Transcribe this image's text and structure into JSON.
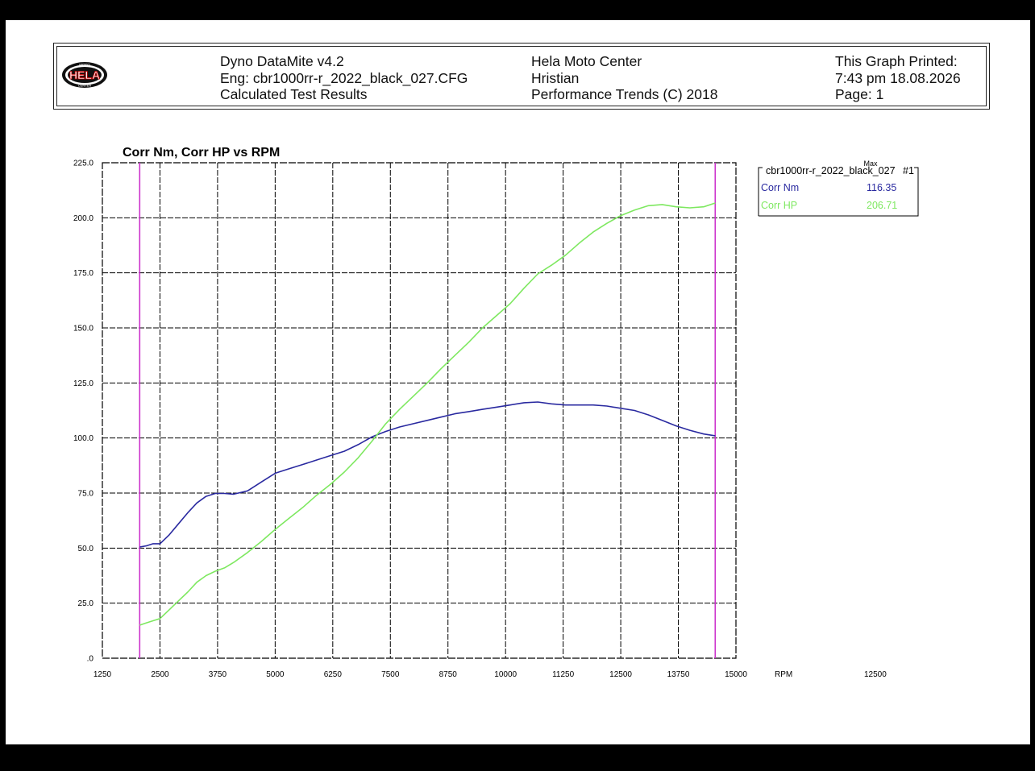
{
  "header": {
    "col1": [
      "Dyno DataMite v4.2",
      "Eng: cbr1000rr-r_2022_black_027.CFG",
      "Calculated Test Results"
    ],
    "col2": [
      "Hela Moto Center",
      "Hristian",
      "Performance Trends (C) 2018"
    ],
    "col3": [
      "This Graph Printed:",
      "7:43 pm 18.08.2026",
      "Page: 1"
    ],
    "logo_top": "MOTO",
    "logo_text": "HELA",
    "logo_bottom": "CENTER"
  },
  "legend": {
    "max_label": "Max",
    "file": "cbr1000rr-r_2022_black_027",
    "run": "#1",
    "items": [
      {
        "name": "Corr Nm",
        "value": "116.35",
        "color": "#2a2aa0"
      },
      {
        "name": "Corr HP",
        "value": "206.71",
        "color": "#7ee860"
      }
    ]
  },
  "chart_data": {
    "type": "line",
    "title": "Corr Nm, Corr HP vs RPM",
    "xlabel": "RPM",
    "extra_x_label": "12500",
    "xlim": [
      1250,
      15000
    ],
    "ylim": [
      0,
      225
    ],
    "x_ticks": [
      "1250",
      "2500",
      "3750",
      "5000",
      "6250",
      "7500",
      "8750",
      "10000",
      "11250",
      "12500",
      "13750",
      "15000"
    ],
    "y_ticks": [
      ".0",
      "25.0",
      "50.0",
      "75.0",
      "100.0",
      "125.0",
      "150.0",
      "175.0",
      "200.0",
      "225.0"
    ],
    "grid": true,
    "markers_x": [
      2060,
      14550
    ],
    "series": [
      {
        "name": "Corr Nm",
        "color": "#2a2aa0",
        "x": [
          2060,
          2200,
          2350,
          2500,
          2700,
          2900,
          3100,
          3300,
          3500,
          3700,
          3900,
          4100,
          4400,
          4700,
          5000,
          5300,
          5600,
          5900,
          6200,
          6500,
          6800,
          7100,
          7400,
          7700,
          8000,
          8300,
          8600,
          8900,
          9200,
          9500,
          9800,
          10100,
          10400,
          10700,
          11000,
          11300,
          11600,
          11900,
          12200,
          12500,
          12800,
          13100,
          13400,
          13700,
          14000,
          14300,
          14550
        ],
        "y": [
          50.5,
          51.0,
          52.0,
          52.0,
          56.0,
          61.0,
          66.0,
          70.5,
          73.5,
          74.8,
          74.8,
          74.5,
          76.0,
          80.0,
          84.0,
          86.0,
          88.0,
          90.0,
          92.0,
          94.0,
          97.0,
          100.5,
          103.0,
          105.0,
          106.5,
          108.0,
          109.5,
          111.0,
          112.0,
          113.0,
          114.0,
          115.0,
          116.0,
          116.35,
          115.5,
          115.0,
          115.0,
          115.0,
          114.5,
          113.5,
          112.5,
          110.5,
          108.0,
          105.5,
          103.5,
          101.8,
          101.0
        ]
      },
      {
        "name": "Corr HP",
        "color": "#7ee860",
        "x": [
          2060,
          2200,
          2350,
          2500,
          2700,
          2900,
          3100,
          3300,
          3500,
          3700,
          3900,
          4100,
          4400,
          4700,
          5000,
          5300,
          5600,
          5900,
          6200,
          6500,
          6800,
          7100,
          7400,
          7700,
          8000,
          8300,
          8600,
          8900,
          9200,
          9500,
          9800,
          10100,
          10400,
          10700,
          11000,
          11300,
          11600,
          11900,
          12200,
          12500,
          12800,
          13100,
          13400,
          13700,
          14000,
          14300,
          14550
        ],
        "y": [
          15.0,
          16.0,
          17.0,
          18.0,
          22.0,
          26.0,
          30.0,
          34.5,
          37.5,
          39.5,
          41.0,
          43.5,
          48.0,
          53.0,
          58.5,
          63.5,
          68.5,
          74.0,
          79.0,
          84.5,
          91.0,
          98.5,
          106.5,
          113.0,
          119.0,
          125.0,
          131.5,
          137.5,
          143.5,
          150.0,
          155.5,
          161.0,
          168.0,
          174.5,
          178.5,
          183.0,
          188.5,
          193.5,
          197.5,
          201.0,
          203.5,
          205.5,
          206.0,
          205.0,
          204.5,
          205.0,
          206.71
        ]
      }
    ]
  }
}
